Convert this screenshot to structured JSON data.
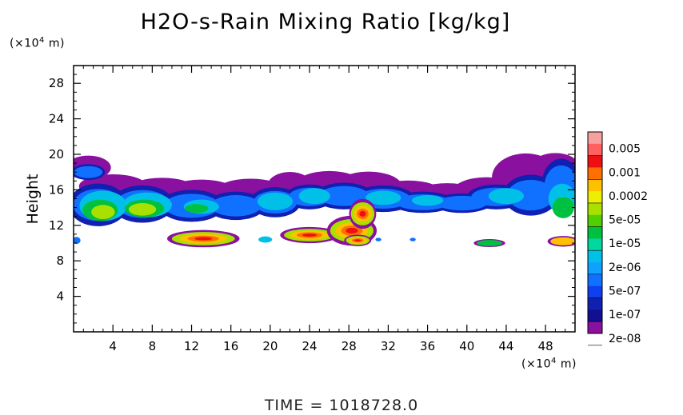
{
  "title": "H2O-s-Rain Mixing Ratio [kg/kg]",
  "y_unit": {
    "prefix": "(×10",
    "exp": "4",
    "suffix": " m)"
  },
  "x_unit": {
    "prefix": "(×10",
    "exp": "4",
    "suffix": " m)"
  },
  "footer": "TIME  =  1018728.0",
  "chart_data": {
    "type": "heatmap",
    "title": "H2O-s-Rain Mixing Ratio [kg/kg]",
    "xlabel": "",
    "ylabel": "Height",
    "xlim": [
      0,
      51
    ],
    "ylim": [
      0,
      30
    ],
    "x_ticks": [
      4,
      8,
      12,
      16,
      20,
      24,
      28,
      32,
      36,
      40,
      44,
      48
    ],
    "y_ticks": [
      4,
      8,
      12,
      16,
      20,
      24,
      28
    ],
    "colorbar": {
      "labels": [
        "0.005",
        "0.001",
        "0.0002",
        "5e-05",
        "1e-05",
        "2e-06",
        "5e-07",
        "1e-07",
        "2e-08"
      ],
      "colors": [
        "#f7a0a0",
        "#ff6060",
        "#ee1010",
        "#ff7000",
        "#ffc000",
        "#eeee00",
        "#a8e000",
        "#50d000",
        "#00c040",
        "#00d8a0",
        "#00c0e8",
        "#10a0ff",
        "#1070ff",
        "#1040ee",
        "#1020b0",
        "#101090",
        "#8a10a0"
      ],
      "scale": "log"
    },
    "features": [
      {
        "name": "upper cloud band",
        "x": [
          0,
          51
        ],
        "y": [
          13,
          19
        ],
        "level": "1e-07 to 5e-05"
      },
      {
        "name": "rain core",
        "x": [
          24,
          30
        ],
        "y": [
          10,
          15
        ],
        "level": "0.001"
      },
      {
        "name": "rain core",
        "x": [
          10,
          16
        ],
        "y": [
          9.5,
          11.5
        ],
        "level": "0.0002"
      },
      {
        "name": "rain patch",
        "x": [
          41,
          44
        ],
        "y": [
          9.5,
          10.5
        ],
        "level": "2e-06"
      },
      {
        "name": "rain patch",
        "x": [
          48,
          51
        ],
        "y": [
          9.5,
          11
        ],
        "level": "5e-05"
      }
    ]
  }
}
